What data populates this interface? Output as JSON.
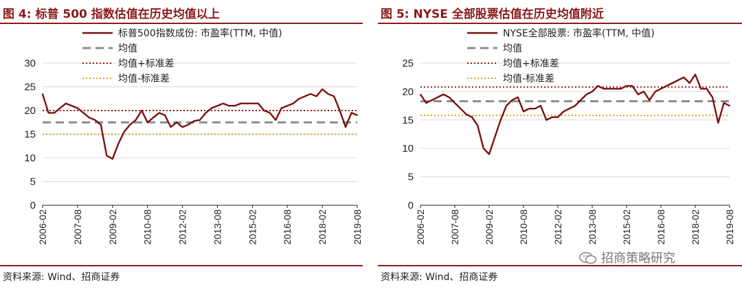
{
  "figures": [
    {
      "title": "图 4:  标普 500 指数估值在历史均值以上",
      "source": "资料来源:  Wind、招商证券"
    },
    {
      "title": "图 5:  NYSE 全部股票估值在历史均值附近",
      "source": "资料来源:  Wind、招商证券"
    }
  ],
  "watermark": "招商策略研究",
  "chart_data": [
    {
      "type": "line",
      "title": "图 4:  标普 500 指数估值在历史均值以上",
      "xlabel": "",
      "ylabel": "",
      "ylim": [
        0,
        30
      ],
      "yticks": [
        0,
        5,
        10,
        15,
        20,
        25,
        30
      ],
      "xticks": [
        "2006-02",
        "2007-08",
        "2009-02",
        "2010-08",
        "2012-02",
        "2013-08",
        "2015-02",
        "2016-08",
        "2018-02",
        "2019-08"
      ],
      "grid": true,
      "legend_position": "top",
      "colors": {
        "pe": "#7b1010",
        "mean": "#8c8c8c",
        "upper": "#a01818",
        "lower": "#e0a020"
      },
      "series": [
        {
          "name": "标普500指数成份:  市盈率(TTM, 中值)",
          "style": "solid",
          "x": [
            "2006-02",
            "2006-05",
            "2006-08",
            "2006-11",
            "2007-02",
            "2007-05",
            "2007-08",
            "2007-11",
            "2008-02",
            "2008-05",
            "2008-08",
            "2008-11",
            "2009-02",
            "2009-05",
            "2009-08",
            "2009-11",
            "2010-02",
            "2010-05",
            "2010-08",
            "2010-11",
            "2011-02",
            "2011-05",
            "2011-08",
            "2011-11",
            "2012-02",
            "2012-05",
            "2012-08",
            "2012-11",
            "2013-02",
            "2013-05",
            "2013-08",
            "2013-11",
            "2014-02",
            "2014-05",
            "2014-08",
            "2014-11",
            "2015-02",
            "2015-05",
            "2015-08",
            "2015-11",
            "2016-02",
            "2016-05",
            "2016-08",
            "2016-11",
            "2017-02",
            "2017-05",
            "2017-08",
            "2017-11",
            "2018-02",
            "2018-05",
            "2018-08",
            "2018-11",
            "2019-02",
            "2019-05",
            "2019-08"
          ],
          "values": [
            23.5,
            19.5,
            19.5,
            20.5,
            21.5,
            21.0,
            20.5,
            19.5,
            18.5,
            18.0,
            17.0,
            10.5,
            9.8,
            13.0,
            15.5,
            17.0,
            18.0,
            20.0,
            17.5,
            18.5,
            19.5,
            19.0,
            16.5,
            17.5,
            16.5,
            17.0,
            17.8,
            18.0,
            19.5,
            20.5,
            21.0,
            21.5,
            21.0,
            21.0,
            21.5,
            21.5,
            21.5,
            21.5,
            20.0,
            19.5,
            18.0,
            20.5,
            21.0,
            21.5,
            22.5,
            23.0,
            23.5,
            23.0,
            24.5,
            23.5,
            23.0,
            20.0,
            16.5,
            19.5,
            19.0
          ]
        },
        {
          "name": "均值",
          "style": "dashed",
          "value": 17.5
        },
        {
          "name": "均值+标准差",
          "style": "dotted",
          "value": 20.0
        },
        {
          "name": "均值-标准差",
          "style": "dotted",
          "value": 15.0
        }
      ]
    },
    {
      "type": "line",
      "title": "图 5:  NYSE 全部股票估值在历史均值附近",
      "xlabel": "",
      "ylabel": "",
      "ylim": [
        0,
        25
      ],
      "yticks": [
        0,
        5,
        10,
        15,
        20,
        25
      ],
      "xticks": [
        "2006-02",
        "2007-08",
        "2009-02",
        "2010-08",
        "2012-02",
        "2013-08",
        "2015-02",
        "2016-08",
        "2018-02",
        "2019-08"
      ],
      "grid": true,
      "legend_position": "top",
      "colors": {
        "pe": "#7b1010",
        "mean": "#8c8c8c",
        "upper": "#a01818",
        "lower": "#e0a020"
      },
      "series": [
        {
          "name": "NYSE全部股票:  市盈率(TTM, 中值)",
          "style": "solid",
          "x": [
            "2006-02",
            "2006-05",
            "2006-08",
            "2006-11",
            "2007-02",
            "2007-05",
            "2007-08",
            "2007-11",
            "2008-02",
            "2008-05",
            "2008-08",
            "2008-11",
            "2009-02",
            "2009-05",
            "2009-08",
            "2009-11",
            "2010-02",
            "2010-05",
            "2010-08",
            "2010-11",
            "2011-02",
            "2011-05",
            "2011-08",
            "2011-11",
            "2012-02",
            "2012-05",
            "2012-08",
            "2012-11",
            "2013-02",
            "2013-05",
            "2013-08",
            "2013-11",
            "2014-02",
            "2014-05",
            "2014-08",
            "2014-11",
            "2015-02",
            "2015-05",
            "2015-08",
            "2015-11",
            "2016-02",
            "2016-05",
            "2016-08",
            "2016-11",
            "2017-02",
            "2017-05",
            "2017-08",
            "2017-11",
            "2018-02",
            "2018-05",
            "2018-08",
            "2018-11",
            "2019-02",
            "2019-05",
            "2019-08"
          ],
          "values": [
            19.5,
            18.0,
            18.5,
            19.0,
            19.5,
            19.0,
            18.0,
            17.0,
            16.0,
            15.5,
            14.0,
            10.0,
            9.0,
            12.0,
            15.0,
            17.5,
            18.5,
            19.0,
            16.5,
            17.0,
            17.0,
            17.5,
            15.0,
            15.5,
            15.5,
            16.5,
            17.0,
            17.5,
            18.5,
            19.5,
            20.0,
            21.0,
            20.5,
            20.5,
            20.5,
            20.5,
            21.0,
            21.0,
            19.5,
            20.0,
            18.5,
            20.0,
            20.5,
            21.0,
            21.5,
            22.0,
            22.5,
            21.5,
            23.0,
            20.5,
            20.5,
            19.0,
            14.5,
            18.0,
            17.5
          ]
        },
        {
          "name": "均值",
          "style": "dashed",
          "value": 18.3
        },
        {
          "name": "均值+标准差",
          "style": "dotted",
          "value": 20.8
        },
        {
          "name": "均值-标准差",
          "style": "dotted",
          "value": 15.8
        }
      ]
    }
  ]
}
